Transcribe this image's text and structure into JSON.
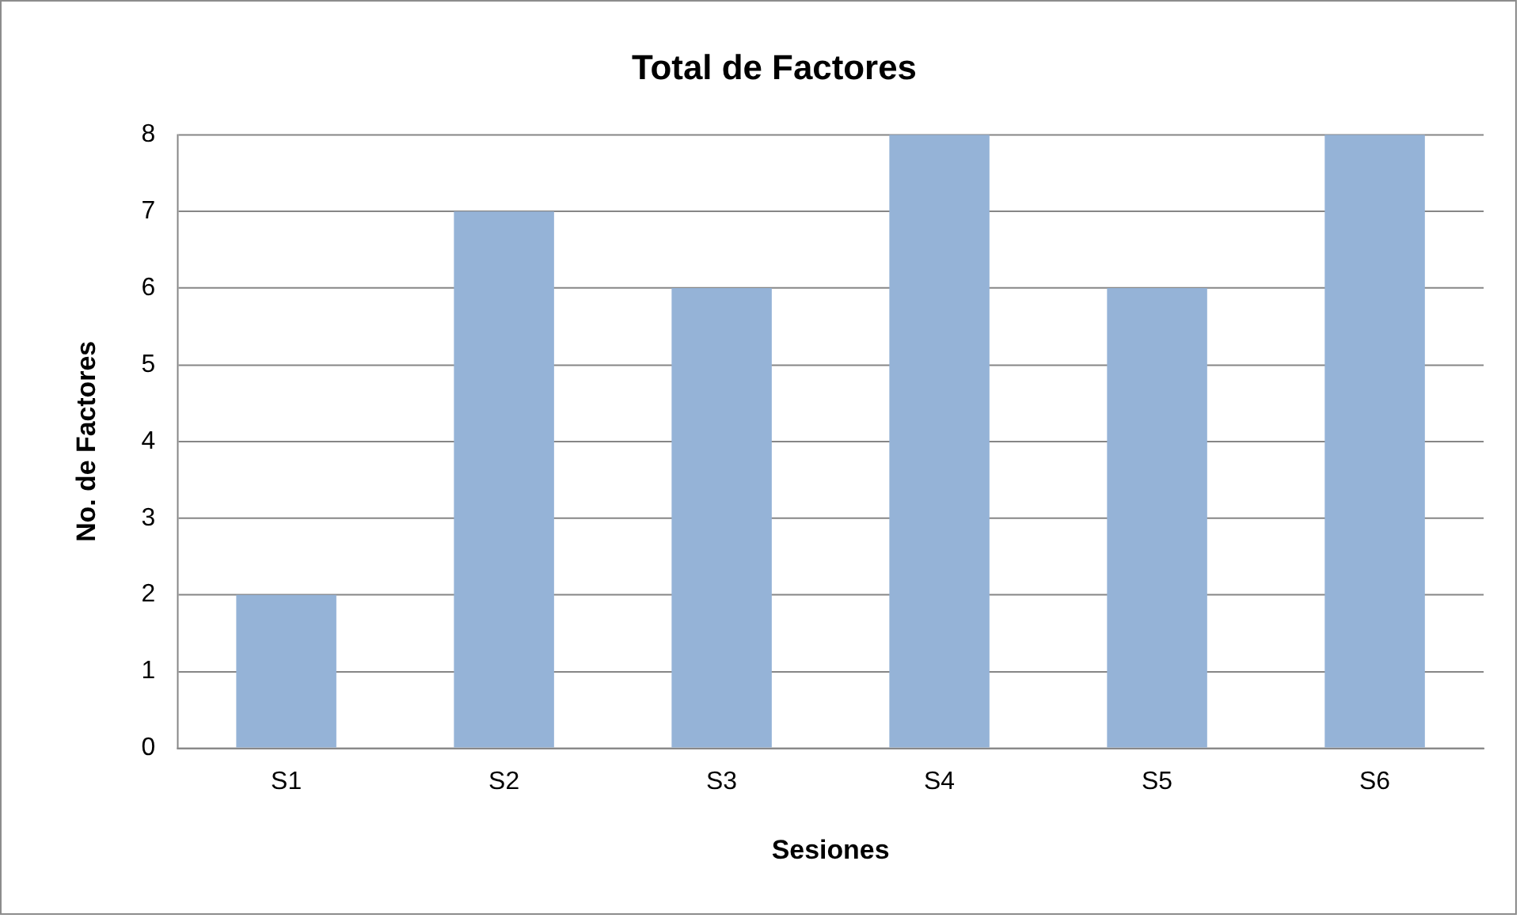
{
  "chart_data": {
    "type": "bar",
    "title": "Total de Factores",
    "xlabel": "Sesiones",
    "ylabel": "No. de Factores",
    "categories": [
      "S1",
      "S2",
      "S3",
      "S4",
      "S5",
      "S6"
    ],
    "values": [
      2,
      7,
      6,
      8,
      6,
      8
    ],
    "color": "#95b3d7",
    "ylim": [
      0,
      8
    ],
    "yticks": [
      0,
      1,
      2,
      3,
      4,
      5,
      6,
      7,
      8
    ],
    "grid": "y",
    "legend": false
  }
}
